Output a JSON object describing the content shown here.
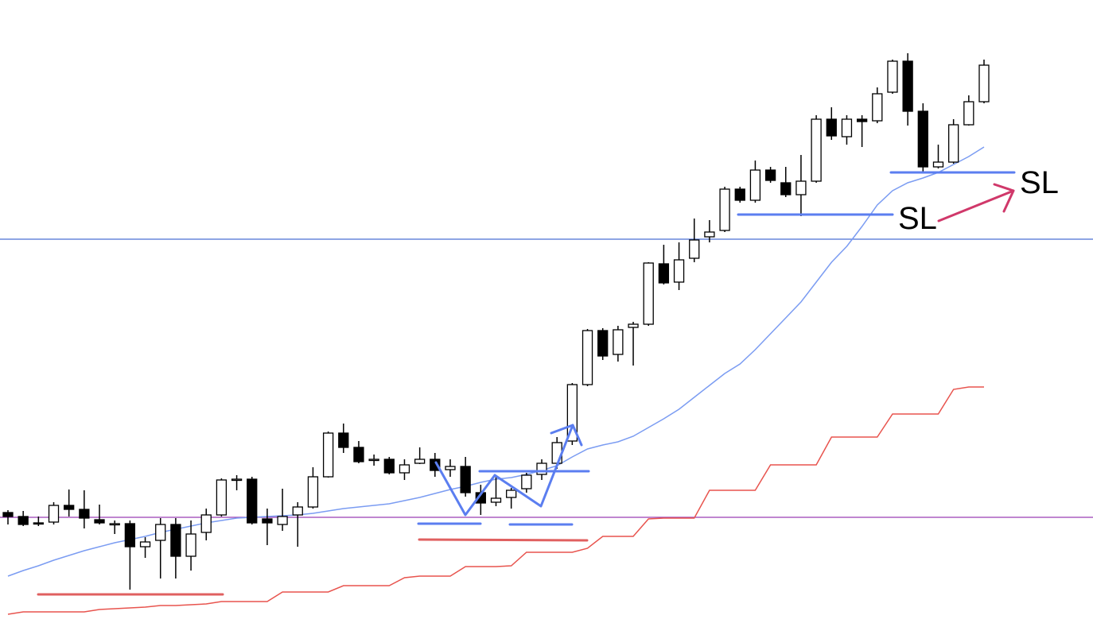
{
  "chart_data": {
    "type": "candlestick",
    "ylim": [
      0,
      784
    ],
    "open": [
      139,
      134,
      126,
      127,
      148,
      143,
      130,
      125,
      125,
      96,
      104,
      124,
      84,
      114,
      136,
      181,
      181,
      131,
      124,
      136,
      146,
      184,
      239,
      221,
      206,
      206,
      189,
      201,
      206,
      193,
      197,
      164,
      152,
      158,
      169,
      187,
      201,
      229,
      300,
      368,
      338,
      372,
      376,
      452,
      429,
      459,
      486,
      494,
      546,
      532,
      570,
      554,
      539,
      556,
      634,
      612,
      634,
      632,
      668,
      707,
      644,
      574,
      580,
      627,
      656
    ],
    "high": [
      142,
      141,
      134,
      152,
      168,
      167,
      149,
      129,
      129,
      108,
      132,
      132,
      129,
      144,
      182,
      186,
      184,
      144,
      169,
      152,
      196,
      241,
      251,
      229,
      212,
      209,
      206,
      221,
      214,
      206,
      209,
      174,
      184,
      170,
      189,
      206,
      234,
      302,
      370,
      371,
      374,
      379,
      454,
      476,
      479,
      509,
      507,
      549,
      549,
      582,
      574,
      574,
      589,
      639,
      649,
      639,
      639,
      674,
      709,
      717,
      654,
      602,
      634,
      664,
      709
    ],
    "low": [
      124,
      122,
      122,
      124,
      134,
      119,
      124,
      112,
      42,
      82,
      56,
      56,
      66,
      104,
      134,
      167,
      124,
      98,
      116,
      96,
      144,
      183,
      214,
      201,
      198,
      187,
      180,
      200,
      184,
      184,
      159,
      136,
      147,
      144,
      164,
      180,
      194,
      224,
      298,
      331,
      329,
      324,
      374,
      426,
      419,
      454,
      479,
      492,
      529,
      529,
      554,
      536,
      512,
      554,
      608,
      602,
      599,
      629,
      666,
      626,
      566,
      572,
      578,
      626,
      654
    ],
    "close": [
      134,
      124,
      125,
      148,
      143,
      132,
      126,
      125,
      96,
      102,
      124,
      84,
      112,
      136,
      180,
      181,
      126,
      126,
      134,
      146,
      184,
      239,
      221,
      203,
      206,
      189,
      199,
      206,
      192,
      197,
      164,
      151,
      157,
      167,
      186,
      201,
      227,
      300,
      368,
      336,
      369,
      376,
      453,
      428,
      457,
      482,
      492,
      546,
      532,
      570,
      557,
      539,
      556,
      634,
      613,
      634,
      631,
      666,
      707,
      644,
      574,
      580,
      627,
      656,
      702
    ],
    "up_color": "#ffffff",
    "down_color": "#000000",
    "series": [
      {
        "color": "#7b9cf2",
        "values": [
          59,
          66,
          72,
          79,
          85,
          91,
          96,
          101,
          105,
          109,
          114,
          118,
          122,
          126,
          129,
          132,
          133,
          134,
          135,
          136,
          138,
          141,
          144,
          146,
          148,
          150,
          154,
          158,
          163,
          168,
          172,
          177,
          181,
          183,
          187,
          192,
          198,
          209,
          219,
          224,
          228,
          235,
          246,
          257,
          269,
          284,
          299,
          314,
          326,
          344,
          364,
          384,
          404,
          429,
          454,
          474,
          499,
          526,
          544,
          554,
          560,
          567,
          577,
          587,
          599
        ]
      },
      {
        "color": "#e8544e",
        "values": [
          11,
          14,
          14,
          14,
          14,
          14,
          17,
          18,
          19,
          20,
          22,
          22,
          23,
          24,
          27,
          27,
          27,
          27,
          39,
          39,
          39,
          39,
          47,
          47,
          47,
          47,
          57,
          59,
          59,
          59,
          71,
          71,
          71,
          72,
          89,
          89,
          89,
          89,
          94,
          109,
          109,
          109,
          131,
          132,
          132,
          132,
          167,
          167,
          167,
          167,
          199,
          199,
          199,
          199,
          234,
          234,
          234,
          234,
          263,
          263,
          263,
          263,
          294,
          297,
          297
        ]
      }
    ],
    "hlines": [
      {
        "value": 483,
        "color": "#4a6fd4"
      },
      {
        "value": 133,
        "color": "#9b3fb5"
      }
    ],
    "annotations": [
      "SL",
      "SL"
    ]
  }
}
